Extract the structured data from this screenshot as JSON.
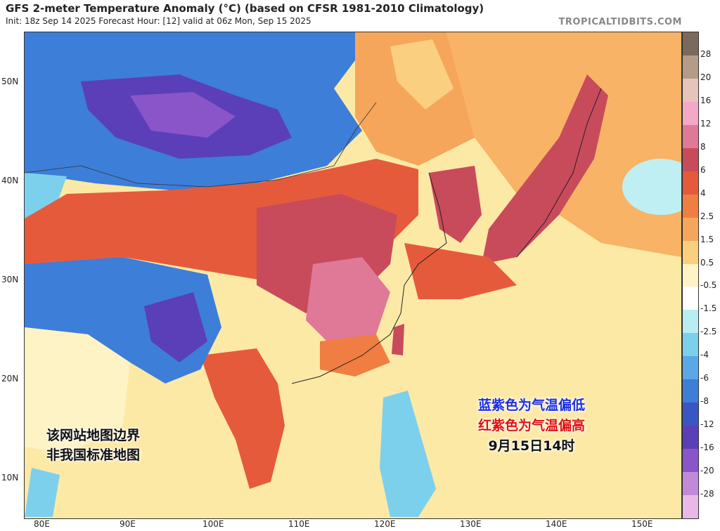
{
  "header": {
    "title": "GFS 2-meter Temperature Anomaly (°C) (based on CFSR 1981-2010 Climatology)",
    "subtitle": "Init: 18z Sep 14 2025   Forecast Hour: [12]   valid at 06z Mon, Sep 15 2025",
    "site": "TROPICALTIDBITS.COM"
  },
  "axes": {
    "lat_labels": [
      "50N",
      "40N",
      "30N",
      "20N",
      "10N"
    ],
    "lon_labels": [
      "80E",
      "90E",
      "100E",
      "110E",
      "120E",
      "130E",
      "140E",
      "150E"
    ]
  },
  "colorbar": {
    "labels": [
      "28",
      "20",
      "16",
      "12",
      "8",
      "6",
      "4",
      "2.5",
      "1.5",
      "0.5",
      "-0.5",
      "-1.5",
      "-2.5",
      "-4",
      "-6",
      "-8",
      "-12",
      "-16",
      "-20",
      "-28"
    ],
    "colors": [
      "#7a6a5c",
      "#b59c88",
      "#e6c4bc",
      "#f3a8c8",
      "#e07898",
      "#c84b5b",
      "#e65a3c",
      "#f07e42",
      "#f6a65a",
      "#fbcf80",
      "#fdf3c4",
      "#ffffff",
      "#b8eef2",
      "#7dd0ec",
      "#5aa8e6",
      "#3d7ed8",
      "#3a55c4",
      "#5a3fb8",
      "#8a55c8",
      "#c08ad8",
      "#e8b8e8"
    ]
  },
  "annotations": {
    "disclaimer_line1": "该网站地图边界",
    "disclaimer_line2": "非我国标准地图",
    "legend_blue": "蓝紫色为气温偏低",
    "legend_red": "红紫色为气温偏高",
    "legend_date": "9月15日14时"
  }
}
